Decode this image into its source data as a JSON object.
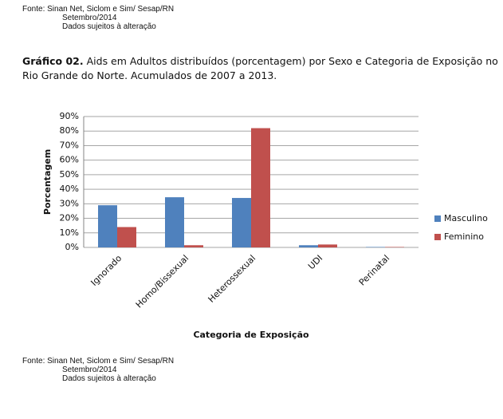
{
  "header": {
    "source": "Fonte: Sinan Net, Siclom e Sim/ Sesap/RN",
    "date": "Setembro/2014",
    "disclaimer": "Dados sujeitos à alteração"
  },
  "chart_data": {
    "type": "bar",
    "title_label": "Gráfico 02.",
    "title": "Aids em Adultos distribuídos (porcentagem) por Sexo e Categoria de Exposição no Rio Grande do Norte. Acumulados de 2007 a 2013.",
    "y_label": "Porcentagem",
    "x_label": "Categoria de Exposição",
    "categories": [
      "Ignorado",
      "Homo/Bissexual",
      "Heterossexual",
      "UDI",
      "Perinatal"
    ],
    "series": [
      {
        "name": "Masculino",
        "color": "#4f81bd",
        "values": [
          29,
          34.5,
          34,
          1.5,
          0.3
        ]
      },
      {
        "name": "Feminino",
        "color": "#c0504d",
        "values": [
          14,
          1.5,
          82,
          2,
          0.3
        ]
      }
    ],
    "ylim": [
      0,
      90
    ],
    "yticks": [
      {
        "value": 0,
        "label": "0%"
      },
      {
        "value": 10,
        "label": "10%"
      },
      {
        "value": 20,
        "label": "20%"
      },
      {
        "value": 30,
        "label": "30%"
      },
      {
        "value": 40,
        "label": "40%"
      },
      {
        "value": 50,
        "label": "50%"
      },
      {
        "value": 60,
        "label": "60%"
      },
      {
        "value": 70,
        "label": "70%"
      },
      {
        "value": 80,
        "label": "80%"
      },
      {
        "value": 90,
        "label": "90%"
      }
    ],
    "grid": true,
    "legend": "right"
  },
  "footer": {
    "source": "Fonte: Sinan Net, Siclom e Sim/ Sesap/RN",
    "date": "Setembro/2014",
    "disclaimer": "Dados sujeitos à alteração"
  }
}
